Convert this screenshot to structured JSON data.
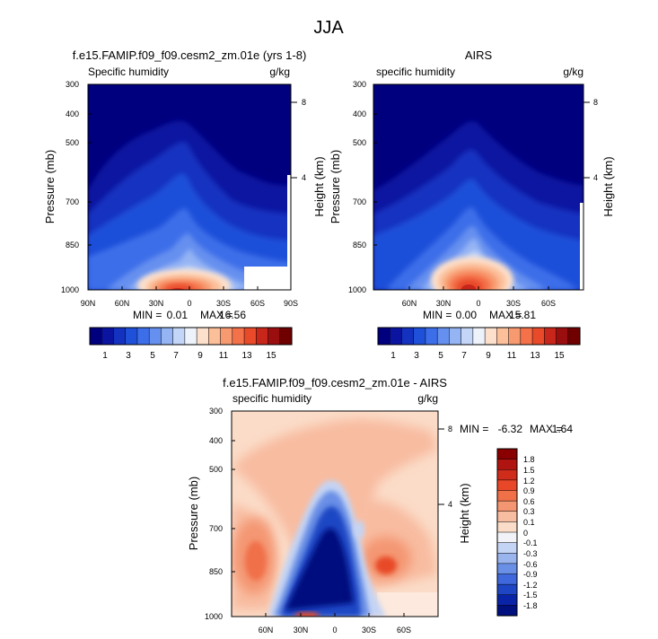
{
  "figure": {
    "title": "JJA"
  },
  "colors": {
    "frame": "#000000",
    "missing": "#ffffff"
  },
  "chart_data": [
    {
      "type": "heatmap",
      "title": "f.e15.FAMIP.f09_f09.cesm2_zm.01e (yrs 1-8)",
      "field_label": "Specific humidity",
      "units": "g/kg",
      "ylabel": "Pressure (mb)",
      "y2label": "Height (km)",
      "x_ticks": [
        "90N",
        "60N",
        "30N",
        "0",
        "30S",
        "60S",
        "90S"
      ],
      "y_ticks": [
        "300",
        "400",
        "500",
        "700",
        "850",
        "1000"
      ],
      "y2_ticks": [
        "8",
        "4"
      ],
      "min_label": "MIN =",
      "min_value": "0.01",
      "max_label": "MAX =",
      "max_value": "16.56",
      "colorbar": {
        "orientation": "horizontal",
        "labels": [
          "1",
          "3",
          "5",
          "7",
          "9",
          "11",
          "13",
          "15"
        ],
        "colors": [
          "#00007f",
          "#0a14a0",
          "#1432c0",
          "#1e50d9",
          "#3c6ee9",
          "#6690ef",
          "#94b4f4",
          "#c3d6f8",
          "#eef3fb",
          "#fde0cc",
          "#fbbf9a",
          "#f89a70",
          "#f4714a",
          "#e84a2a",
          "#c8261a",
          "#9a0e10",
          "#700000"
        ]
      }
    },
    {
      "type": "heatmap",
      "title": "AIRS",
      "field_label": "specific humidity",
      "units": "g/kg",
      "ylabel": "Pressure (mb)",
      "y2label": "Height (km)",
      "x_ticks": [
        "60N",
        "30N",
        "0",
        "30S",
        "60S"
      ],
      "y_ticks": [
        "300",
        "400",
        "500",
        "700",
        "850",
        "1000"
      ],
      "y2_ticks": [
        "8",
        "4"
      ],
      "min_label": "MIN =",
      "min_value": "0.00",
      "max_label": "MAX =",
      "max_value": "15.81",
      "colorbar": {
        "orientation": "horizontal",
        "labels": [
          "1",
          "3",
          "5",
          "7",
          "9",
          "11",
          "13",
          "15"
        ],
        "colors": [
          "#00007f",
          "#0a14a0",
          "#1432c0",
          "#1e50d9",
          "#3c6ee9",
          "#6690ef",
          "#94b4f4",
          "#c3d6f8",
          "#eef3fb",
          "#fde0cc",
          "#fbbf9a",
          "#f89a70",
          "#f4714a",
          "#e84a2a",
          "#c8261a",
          "#9a0e10",
          "#700000"
        ]
      }
    },
    {
      "type": "heatmap",
      "title": "f.e15.FAMIP.f09_f09.cesm2_zm.01e - AIRS",
      "field_label": "specific humidity",
      "units": "g/kg",
      "ylabel": "Pressure (mb)",
      "y2label": "Height (km)",
      "x_ticks": [
        "60N",
        "30N",
        "0",
        "30S",
        "60S"
      ],
      "y_ticks": [
        "300",
        "400",
        "500",
        "700",
        "850",
        "1000"
      ],
      "y2_ticks": [
        "8",
        "4"
      ],
      "min_label": "MIN =",
      "min_value": "-6.32",
      "max_label": "MAX =",
      "max_value": "1.64",
      "colorbar": {
        "orientation": "vertical",
        "labels": [
          "1.8",
          "1.5",
          "1.2",
          "0.9",
          "0.6",
          "0.3",
          "0.1",
          "0",
          "-0.1",
          "-0.3",
          "-0.6",
          "-0.9",
          "-1.2",
          "-1.5",
          "-1.8"
        ],
        "colors": [
          "#8a0000",
          "#b01410",
          "#d02c1c",
          "#e84828",
          "#f07048",
          "#f49672",
          "#f8bca0",
          "#fbdcc8",
          "#f2f3f8",
          "#c4d4f4",
          "#9ab4ee",
          "#6a8fe6",
          "#3e68dc",
          "#1e46c4",
          "#0a24a8",
          "#00107f"
        ]
      }
    }
  ]
}
